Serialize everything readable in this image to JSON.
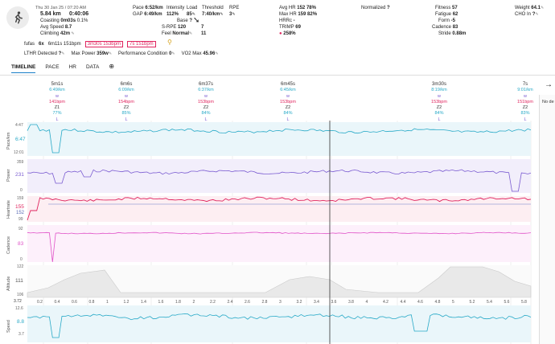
{
  "header": {
    "datetime": "Thu 30 Jan 25 / 07:20 AM",
    "distance": "5.84 km",
    "duration": "0:40:06",
    "coasting_label": "Coasting",
    "coasting_value": "0m03s",
    "coasting_pct": "0.1%",
    "avg_speed_label": "Avg Speed",
    "avg_speed_value": "8.7",
    "climbing_label": "Climbing",
    "climbing_value": "42m",
    "pace_label": "Pace",
    "pace_value": "6:52/km",
    "gap_label": "GAP",
    "gap_value": "6:49/km",
    "intensity_label": "Intensity",
    "intensity_value": "112%",
    "load_label": "Load",
    "load_value": "85",
    "base_label": "Base",
    "base_value": "?",
    "srpe_label": "S-RPE",
    "srpe_value": "120",
    "srpe_right": "7",
    "feel_label": "Feel",
    "feel_value": "Normal",
    "feel_right": "11",
    "threshold_label": "Threshold",
    "threshold_value": "7:40/km",
    "rpe_label": "RPE",
    "rpe_value": "3",
    "avghr_label": "Avg HR",
    "avghr_value": "152",
    "avghr_pct": "78%",
    "maxhr_label": "Max HR",
    "maxhr_value": "159",
    "maxhr_pct": "82%",
    "hrrc_label": "HRRc",
    "hrrc_value": "-",
    "trimp_label": "TRIMP",
    "trimp_value": "69",
    "decoupling_value": "258%",
    "normalized_label": "Normalized",
    "normalized_value": "?",
    "fitness_label": "Fitness",
    "fitness_value": "57",
    "fatigue_label": "Fatigue",
    "fatigue_value": "62",
    "form_label": "Form",
    "form_value": "-5",
    "cadence_label": "Cadence",
    "cadence_value": "83",
    "stride_label": "Stride",
    "stride_value": "0.88m",
    "weight_label": "Weight",
    "weight_value": "64.1",
    "cho_label": "CHO In",
    "cho_value": "?"
  },
  "intervals_row": {
    "label": "fufas",
    "count": "6x",
    "chip1": "6m11s 151bpm",
    "chip2": "3m30s 153bpm",
    "chip3": "7s 151bpm"
  },
  "metrics_row": {
    "lthr_label": "LTHR Detected",
    "lthr_value": "?",
    "maxpower_label": "Max Power",
    "maxpower_value": "359w",
    "perf_label": "Performance Condition",
    "perf_value": "0",
    "vo2_label": "VO2 Max",
    "vo2_value": "45.96"
  },
  "tabs": [
    "TIMELINE",
    "PACE",
    "HR",
    "DATA"
  ],
  "laps": [
    {
      "dur": "5m1s",
      "pace": "6:49/km",
      "pw": "w",
      "hr": "141bpm",
      "z": "Z1",
      "pct": "77%",
      "l": "L"
    },
    {
      "dur": "6m6s",
      "pace": "6:09/km",
      "pw": "w",
      "hr": "154bpm",
      "z": "Z2",
      "pct": "85%",
      "l": "L"
    },
    {
      "dur": "6m37s",
      "pace": "6:37/km",
      "pw": "w",
      "hr": "153bpm",
      "z": "Z2",
      "pct": "84%",
      "l": "L"
    },
    {
      "dur": "6m45s",
      "pace": "6:45/km",
      "pw": "w",
      "hr": "153bpm",
      "z": "Z2",
      "pct": "84%",
      "l": "L"
    },
    {
      "dur": "3m30s",
      "pace": "8:19/km",
      "pw": "w",
      "hr": "153bpm",
      "z": "Z2",
      "pct": "84%",
      "l": "L"
    },
    {
      "dur": "7s",
      "pace": "9:01/km",
      "pw": "w",
      "hr": "151bpm",
      "z": "Z2",
      "pct": "83%",
      "l": "L"
    }
  ],
  "tracks": {
    "pace": {
      "label": "Pace/km",
      "ticks": [
        "4:47",
        "12:01"
      ],
      "live": "6:47",
      "color": "#27a9c7"
    },
    "power": {
      "label": "Power",
      "ticks": [
        "359",
        "0"
      ],
      "live": "231",
      "color": "#7a5bd1"
    },
    "hr": {
      "label": "Heartrate",
      "ticks": [
        "159",
        "99"
      ],
      "live": "155",
      "live2": "152",
      "color": "#e0245e"
    },
    "cadence": {
      "label": "Cadence",
      "ticks": [
        "92",
        "0"
      ],
      "live": "83",
      "color": "#e052c8"
    },
    "altitude": {
      "label": "Altitude",
      "ticks": [
        "122",
        "106"
      ],
      "live": "111",
      "color": "#888888"
    },
    "speed": {
      "label": "Speed",
      "ticks": [
        "12.6",
        "3.7"
      ],
      "live": "8.8",
      "color": "#27a9c7"
    }
  },
  "xaxis": {
    "start": "3.72",
    "ticks": [
      "0.2",
      "0.4",
      "0.6",
      "0.8",
      "1",
      "1.2",
      "1.4",
      "1.6",
      "1.8",
      "2",
      "2.2",
      "2.4",
      "2.6",
      "2.8",
      "3",
      "3.2",
      "3.4",
      "3.6",
      "3.8",
      "4",
      "4.2",
      "4.4",
      "4.6",
      "4.8",
      "5",
      "5.2",
      "5.4",
      "5.6",
      "5.8"
    ]
  },
  "side_panel_text": "No de"
}
